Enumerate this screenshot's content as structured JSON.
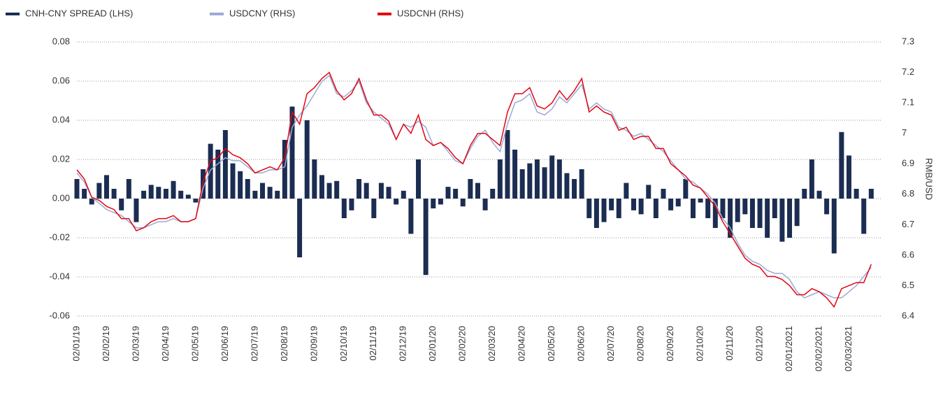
{
  "chart_data": {
    "type": "bar-line",
    "categories": [
      "02/01/19",
      null,
      null,
      null,
      "02/02/19",
      null,
      null,
      null,
      "02/03/19",
      null,
      null,
      null,
      "02/04/19",
      null,
      null,
      null,
      "02/05/19",
      null,
      null,
      null,
      "02/06/19",
      null,
      null,
      null,
      "02/07/19",
      null,
      null,
      null,
      "02/08/19",
      null,
      null,
      null,
      "02/09/19",
      null,
      null,
      null,
      "02/10/19",
      null,
      null,
      null,
      "02/11/19",
      null,
      null,
      null,
      "02/12/19",
      null,
      null,
      null,
      "02/01/20",
      null,
      null,
      null,
      "02/02/20",
      null,
      null,
      null,
      "02/03/20",
      null,
      null,
      null,
      "02/04/20",
      null,
      null,
      null,
      "02/05/20",
      null,
      null,
      null,
      "02/06/20",
      null,
      null,
      null,
      "02/07/20",
      null,
      null,
      null,
      "02/08/20",
      null,
      null,
      null,
      "02/09/20",
      null,
      null,
      null,
      "02/10/20",
      null,
      null,
      null,
      "02/11/20",
      null,
      null,
      null,
      "02/12/20",
      null,
      null,
      null,
      "02/01/2021",
      null,
      null,
      null,
      "02/02/2021",
      null,
      null,
      null,
      "02/03/2021",
      null,
      null,
      null
    ],
    "series": [
      {
        "name": "CNH-CNY SPREAD (LHS)",
        "color": "#1c2d52",
        "type": "bar",
        "axis": "y",
        "values": [
          0.01,
          0.005,
          -0.003,
          0.008,
          0.012,
          0.005,
          -0.006,
          0.01,
          -0.012,
          0.004,
          0.007,
          0.006,
          0.005,
          0.009,
          0.004,
          0.002,
          -0.002,
          0.015,
          0.028,
          0.025,
          0.035,
          0.018,
          0.014,
          0.01,
          0.004,
          0.008,
          0.006,
          0.004,
          0.03,
          0.047,
          -0.03,
          0.04,
          0.02,
          0.012,
          0.008,
          0.009,
          -0.01,
          -0.006,
          0.01,
          0.008,
          -0.01,
          0.008,
          0.006,
          -0.003,
          0.004,
          -0.018,
          0.02,
          -0.039,
          -0.005,
          -0.003,
          0.006,
          0.005,
          -0.004,
          0.01,
          0.008,
          -0.006,
          0.005,
          0.02,
          0.035,
          0.025,
          0.015,
          0.018,
          0.02,
          0.016,
          0.022,
          0.02,
          0.013,
          0.01,
          0.015,
          -0.01,
          -0.015,
          -0.012,
          -0.006,
          -0.01,
          0.008,
          -0.006,
          -0.008,
          0.007,
          -0.01,
          0.005,
          -0.006,
          -0.004,
          0.01,
          -0.01,
          -0.002,
          -0.01,
          -0.015,
          -0.01,
          -0.02,
          -0.012,
          -0.008,
          -0.015,
          -0.015,
          -0.02,
          -0.01,
          -0.022,
          -0.02,
          -0.014,
          0.005,
          0.02,
          0.004,
          -0.008,
          -0.028,
          0.034,
          0.022,
          0.005,
          -0.018,
          0.005
        ]
      },
      {
        "name": "USDCNY (RHS)",
        "color": "#9aabd4",
        "type": "line",
        "axis": "y2",
        "values": [
          6.87,
          6.84,
          6.79,
          6.77,
          6.75,
          6.74,
          6.73,
          6.71,
          6.69,
          6.69,
          6.7,
          6.71,
          6.71,
          6.72,
          6.71,
          6.71,
          6.72,
          6.82,
          6.88,
          6.9,
          6.92,
          6.91,
          6.91,
          6.89,
          6.87,
          6.87,
          6.88,
          6.88,
          6.89,
          7.02,
          7.06,
          7.09,
          7.13,
          7.17,
          7.19,
          7.13,
          7.12,
          7.14,
          7.17,
          7.1,
          7.07,
          7.05,
          7.03,
          6.98,
          7.03,
          7.02,
          7.04,
          7.02,
          6.96,
          6.97,
          6.94,
          6.91,
          6.9,
          6.95,
          6.99,
          7.01,
          6.97,
          6.94,
          7.03,
          7.1,
          7.11,
          7.13,
          7.07,
          7.06,
          7.08,
          7.12,
          7.1,
          7.13,
          7.16,
          7.08,
          7.1,
          7.08,
          7.07,
          7.02,
          7.01,
          6.99,
          7.0,
          6.98,
          6.96,
          6.94,
          6.91,
          6.88,
          6.85,
          6.84,
          6.82,
          6.8,
          6.77,
          6.72,
          6.69,
          6.64,
          6.6,
          6.58,
          6.57,
          6.55,
          6.54,
          6.54,
          6.52,
          6.48,
          6.46,
          6.47,
          6.48,
          6.47,
          6.46,
          6.46,
          6.48,
          6.5,
          6.53,
          6.56
        ]
      },
      {
        "name": "USDCNH (RHS)",
        "color": "#e30613",
        "type": "line",
        "axis": "y2",
        "values": [
          6.88,
          6.85,
          6.79,
          6.78,
          6.76,
          6.75,
          6.72,
          6.72,
          6.68,
          6.69,
          6.71,
          6.72,
          6.72,
          6.73,
          6.71,
          6.71,
          6.72,
          6.84,
          6.91,
          6.92,
          6.95,
          6.93,
          6.92,
          6.9,
          6.87,
          6.88,
          6.89,
          6.88,
          6.92,
          7.07,
          7.03,
          7.13,
          7.15,
          7.18,
          7.2,
          7.14,
          7.11,
          7.13,
          7.18,
          7.11,
          7.06,
          7.06,
          7.04,
          6.98,
          7.03,
          7.0,
          7.06,
          6.98,
          6.96,
          6.97,
          6.95,
          6.92,
          6.9,
          6.96,
          7.0,
          7.0,
          6.98,
          6.96,
          7.07,
          7.13,
          7.13,
          7.15,
          7.09,
          7.08,
          7.1,
          7.14,
          7.11,
          7.14,
          7.18,
          7.07,
          7.09,
          7.07,
          7.06,
          7.01,
          7.02,
          6.98,
          6.99,
          6.99,
          6.95,
          6.95,
          6.9,
          6.88,
          6.86,
          6.83,
          6.82,
          6.79,
          6.76,
          6.71,
          6.67,
          6.63,
          6.59,
          6.57,
          6.56,
          6.53,
          6.53,
          6.52,
          6.5,
          6.47,
          6.47,
          6.49,
          6.48,
          6.46,
          6.43,
          6.49,
          6.5,
          6.51,
          6.51,
          6.57
        ]
      }
    ],
    "ylim": [
      -0.06,
      0.08
    ],
    "yticks": [
      -0.06,
      -0.04,
      -0.02,
      {
        "value": 0,
        "label": "0.00"
      },
      0.02,
      0.04,
      0.06,
      0.08
    ],
    "y2lim": [
      6.4,
      7.3
    ],
    "y2ticks": [
      6.4,
      6.5,
      6.6,
      6.7,
      6.8,
      6.9,
      7.0,
      7.1,
      7.2,
      7.3
    ],
    "y2label": "RMB/USD",
    "grid": true
  }
}
